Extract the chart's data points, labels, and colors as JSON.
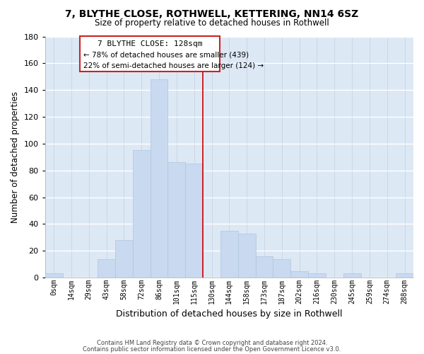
{
  "title": "7, BLYTHE CLOSE, ROTHWELL, KETTERING, NN14 6SZ",
  "subtitle": "Size of property relative to detached houses in Rothwell",
  "xlabel": "Distribution of detached houses by size in Rothwell",
  "ylabel": "Number of detached properties",
  "bar_labels": [
    "0sqm",
    "14sqm",
    "29sqm",
    "43sqm",
    "58sqm",
    "72sqm",
    "86sqm",
    "101sqm",
    "115sqm",
    "130sqm",
    "144sqm",
    "158sqm",
    "173sqm",
    "187sqm",
    "202sqm",
    "216sqm",
    "230sqm",
    "245sqm",
    "259sqm",
    "274sqm",
    "288sqm"
  ],
  "bar_values": [
    3,
    0,
    0,
    14,
    28,
    95,
    148,
    86,
    85,
    0,
    35,
    33,
    16,
    14,
    5,
    3,
    0,
    3,
    0,
    0,
    3
  ],
  "bar_color": "#c8d9f0",
  "bar_edge_color": "#aec6e0",
  "ylim": [
    0,
    180
  ],
  "yticks": [
    0,
    20,
    40,
    60,
    80,
    100,
    120,
    140,
    160,
    180
  ],
  "annotation_title": "7 BLYTHE CLOSE: 128sqm",
  "annotation_line1": "← 78% of detached houses are smaller (439)",
  "annotation_line2": "22% of semi-detached houses are larger (124) →",
  "vline_color": "#cc0000",
  "footer_line1": "Contains HM Land Registry data © Crown copyright and database right 2024.",
  "footer_line2": "Contains public sector information licensed under the Open Government Licence v3.0.",
  "background_color": "#dde8f5",
  "grid_color": "#c0cfe0"
}
